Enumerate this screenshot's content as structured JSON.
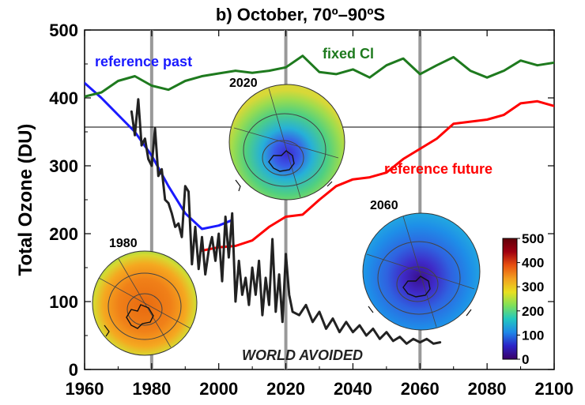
{
  "chart_data": {
    "type": "line",
    "title": "b) October, 70º–90ºS",
    "ylabel": "Total Ozone (DU)",
    "xlim": [
      1960,
      2100
    ],
    "ylim": [
      0,
      500
    ],
    "x_ticks": [
      1960,
      1980,
      2000,
      2020,
      2040,
      2060,
      2080,
      2100
    ],
    "y_ticks": [
      0,
      100,
      200,
      300,
      400,
      500
    ],
    "highlight_years": [
      1980,
      2020,
      2060
    ],
    "reference_line_y": 357,
    "series": [
      {
        "name": "reference past",
        "color": "#1a1aff",
        "x": [
          1960,
          1965,
          1970,
          1975,
          1980,
          1985,
          1990,
          1995,
          2000,
          2004
        ],
        "y": [
          422,
          400,
          375,
          350,
          315,
          270,
          230,
          207,
          212,
          220
        ]
      },
      {
        "name": "fixed Cl",
        "color": "#1e7a1e",
        "x": [
          1960,
          1965,
          1970,
          1975,
          1980,
          1985,
          1990,
          1995,
          2000,
          2005,
          2010,
          2015,
          2020,
          2025,
          2030,
          2035,
          2040,
          2045,
          2050,
          2055,
          2060,
          2065,
          2070,
          2075,
          2080,
          2085,
          2090,
          2095,
          2100
        ],
        "y": [
          402,
          408,
          425,
          432,
          418,
          412,
          425,
          432,
          436,
          440,
          437,
          440,
          445,
          462,
          438,
          435,
          442,
          430,
          448,
          458,
          435,
          448,
          460,
          440,
          430,
          440,
          455,
          448,
          452
        ]
      },
      {
        "name": "reference future",
        "color": "#ff0000",
        "x": [
          1995,
          2000,
          2005,
          2010,
          2015,
          2020,
          2025,
          2030,
          2035,
          2040,
          2045,
          2050,
          2055,
          2060,
          2065,
          2070,
          2075,
          2080,
          2085,
          2090,
          2095,
          2100
        ],
        "y": [
          175,
          180,
          182,
          190,
          210,
          225,
          228,
          250,
          270,
          280,
          283,
          290,
          310,
          325,
          340,
          362,
          365,
          368,
          375,
          392,
          395,
          388
        ]
      },
      {
        "name": "WORLD AVOIDED",
        "color": "#222222",
        "x": [
          1974,
          1975,
          1976,
          1977,
          1978,
          1979,
          1980,
          1981,
          1982,
          1983,
          1984,
          1985,
          1986,
          1987,
          1988,
          1989,
          1990,
          1991,
          1992,
          1993,
          1994,
          1995,
          1996,
          1997,
          1998,
          1999,
          2000,
          2001,
          2002,
          2003,
          2004,
          2005,
          2006,
          2007,
          2008,
          2009,
          2010,
          2011,
          2012,
          2013,
          2014,
          2015,
          2016,
          2017,
          2018,
          2019,
          2020,
          2021,
          2022,
          2024,
          2026,
          2028,
          2030,
          2032,
          2034,
          2036,
          2038,
          2040,
          2042,
          2044,
          2046,
          2048,
          2050,
          2052,
          2054,
          2056,
          2058,
          2060,
          2062,
          2064,
          2066
        ],
        "y": [
          380,
          345,
          398,
          330,
          340,
          310,
          300,
          355,
          285,
          295,
          250,
          245,
          230,
          210,
          215,
          195,
          270,
          262,
          155,
          210,
          148,
          195,
          140,
          175,
          195,
          160,
          200,
          130,
          225,
          165,
          230,
          100,
          160,
          110,
          135,
          95,
          150,
          110,
          160,
          80,
          135,
          95,
          192,
          85,
          140,
          70,
          170,
          110,
          85,
          80,
          95,
          70,
          85,
          60,
          75,
          55,
          70,
          55,
          65,
          50,
          60,
          45,
          55,
          42,
          48,
          38,
          45,
          40,
          45,
          38,
          40
        ]
      }
    ],
    "annotations": {
      "reference_past": "reference past",
      "fixed_cl": "fixed Cl",
      "reference_future": "reference future",
      "world_avoided": "WORLD AVOIDED"
    },
    "maps": [
      {
        "label": "1980",
        "year": 1980
      },
      {
        "label": "2020",
        "year": 2020
      },
      {
        "label": "2060",
        "year": 2060
      }
    ],
    "colorbar": {
      "ticks": [
        0,
        100,
        200,
        300,
        400,
        500
      ],
      "colors": [
        "#3a0067",
        "#2b23c8",
        "#1e88e8",
        "#22c8c0",
        "#7ee05a",
        "#e8e020",
        "#f2a020",
        "#e85010",
        "#a00010",
        "#600008"
      ]
    }
  }
}
